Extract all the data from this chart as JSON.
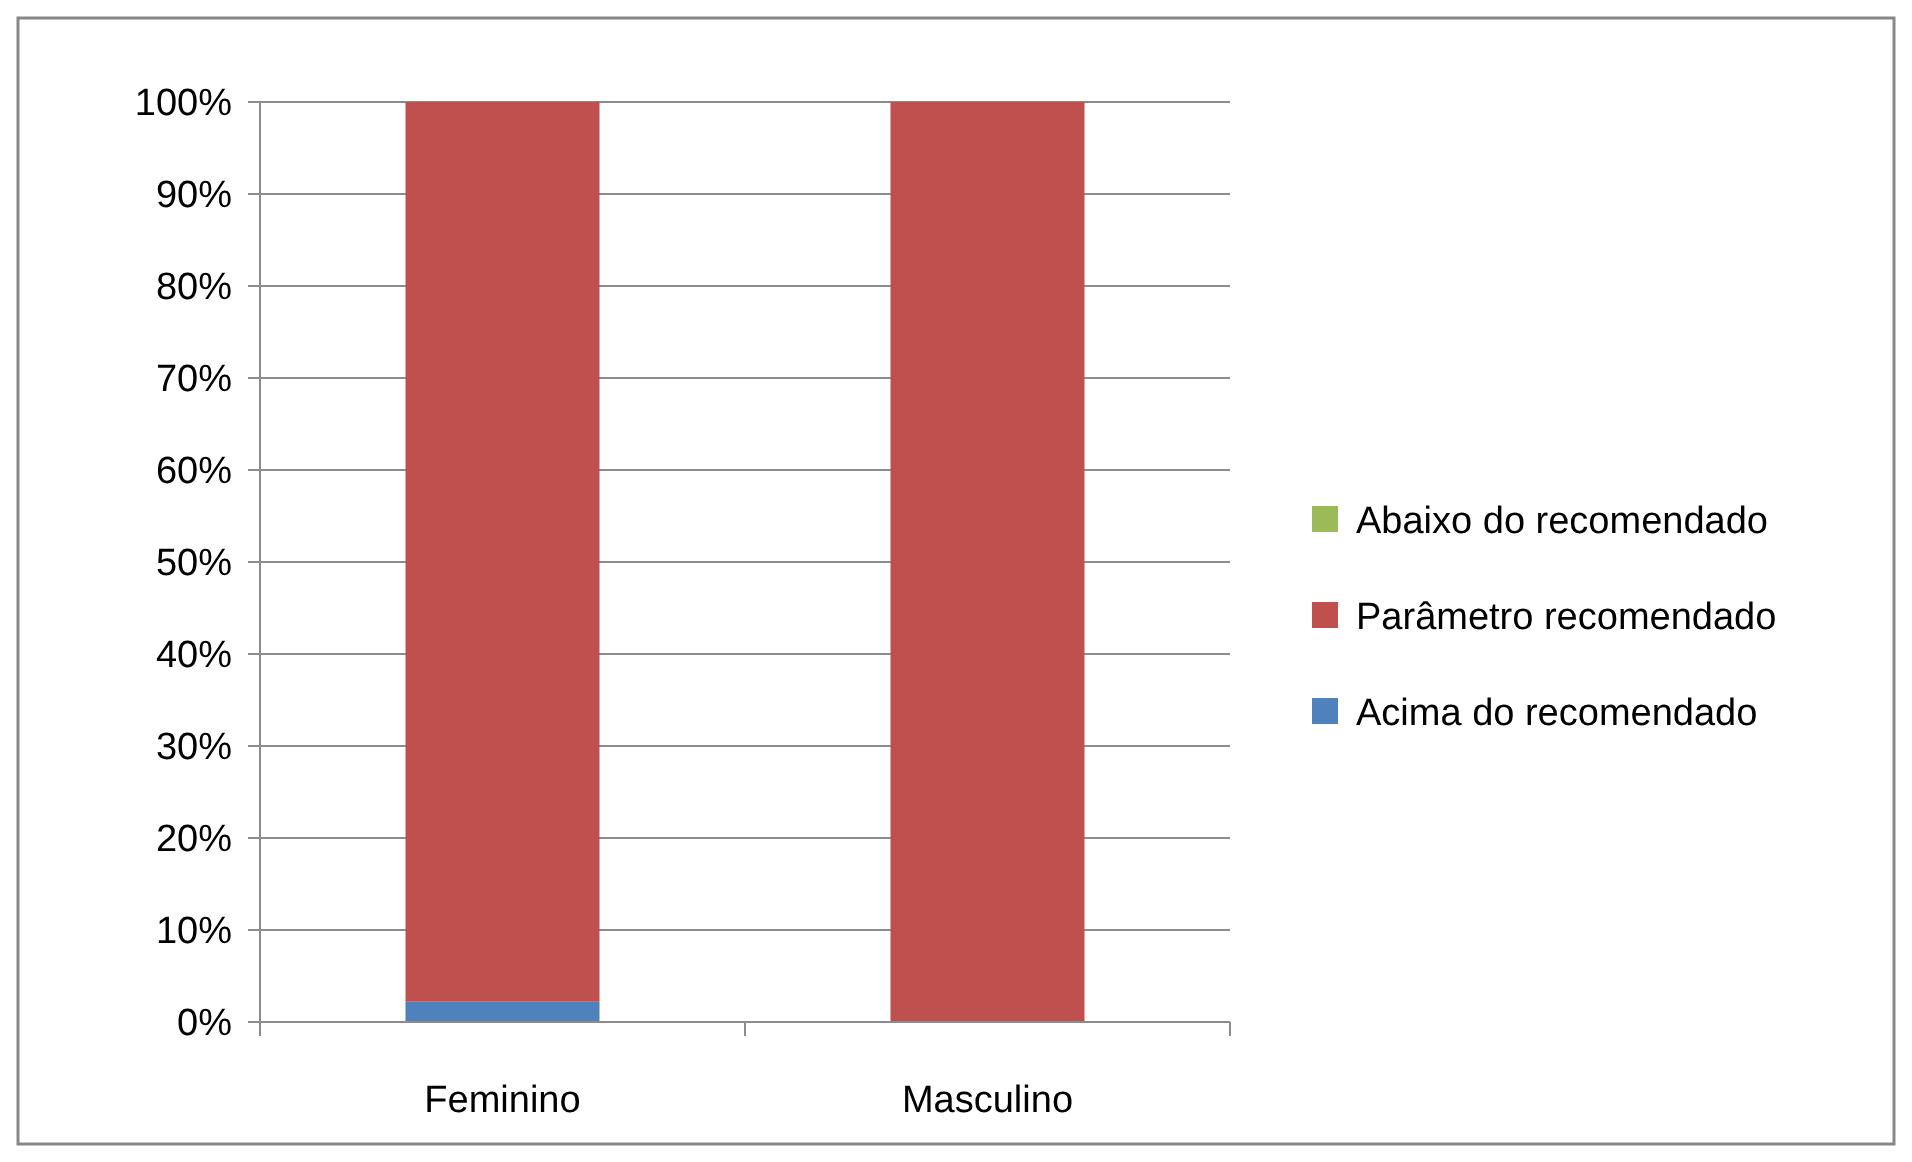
{
  "chart_data": {
    "type": "bar",
    "stacked": true,
    "categories": [
      "Feminino",
      "Masculino"
    ],
    "series": [
      {
        "name": "Acima do recomendado",
        "color": "#4f81bd",
        "values": [
          2.2,
          0
        ]
      },
      {
        "name": "Parâmetro recomendado",
        "color": "#c0504d",
        "values": [
          97.8,
          100
        ]
      },
      {
        "name": "Abaixo do recomendado",
        "color": "#9bbb59",
        "values": [
          0,
          0
        ]
      }
    ],
    "ylim": [
      0,
      100
    ],
    "yticks": [
      {
        "value": 0,
        "label": "0%"
      },
      {
        "value": 10,
        "label": "10%"
      },
      {
        "value": 20,
        "label": "20%"
      },
      {
        "value": 30,
        "label": "30%"
      },
      {
        "value": 40,
        "label": "40%"
      },
      {
        "value": 50,
        "label": "50%"
      },
      {
        "value": 60,
        "label": "60%"
      },
      {
        "value": 70,
        "label": "70%"
      },
      {
        "value": 80,
        "label": "80%"
      },
      {
        "value": 90,
        "label": "90%"
      },
      {
        "value": 100,
        "label": "100%"
      }
    ],
    "grid": "y",
    "legend": "right"
  }
}
